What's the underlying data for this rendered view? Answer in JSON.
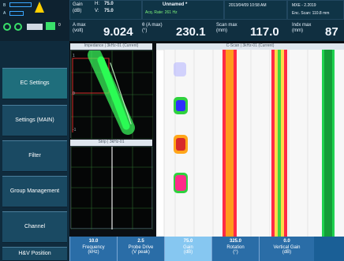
{
  "header": {
    "status": {
      "b_label": "B",
      "left_label": "A",
      "right_value": "0"
    },
    "gain": {
      "label": "Gain",
      "unit": "(dB)",
      "h_label": "H:",
      "h_value": "75.0",
      "v_label": "V:",
      "v_value": "75.0"
    },
    "file": {
      "name": "Unnamed *",
      "subtitle": "Acq. Rate: 261 Hz"
    },
    "datetime": "2013/04/09 10:58 AM",
    "device": {
      "label": "MXE - 2.2019",
      "scan_label": "Enc. Scan: 110.8 mm"
    },
    "readouts": [
      {
        "label": "A max (volt)",
        "value": "9.024"
      },
      {
        "label": "θ (A max) (°)",
        "value": "230.1"
      },
      {
        "label": "Scan max (mm)",
        "value": "117.0"
      },
      {
        "label": "Indx max (mm)",
        "value": "87"
      }
    ]
  },
  "sidebar": {
    "menu": [
      {
        "label": "EC Settings",
        "active": true
      },
      {
        "label": "Settings (MAIN)",
        "active": false
      },
      {
        "label": "Filter",
        "active": false
      },
      {
        "label": "Group Management",
        "active": false
      },
      {
        "label": "Channel",
        "active": false
      },
      {
        "label": "H&V Position",
        "active": false
      }
    ]
  },
  "panels": {
    "impedance_title": "Impedance | 3kHz-01 (Current)",
    "strip_title": "Strip | 3kHz-01",
    "cscan_title": "C-Scan | 3kHz-01 (Current)",
    "axis": {
      "left_top": "1",
      "left_mid": "0",
      "left_bot": "-1"
    }
  },
  "bottom_params": [
    {
      "value": "10.0",
      "label": "Frequency",
      "unit": "(kHz)",
      "active": false
    },
    {
      "value": "2.5",
      "label": "Probe Drive",
      "unit": "(V peak)",
      "active": false
    },
    {
      "value": "75.0",
      "label": "Gain",
      "unit": "(dB)",
      "active": true
    },
    {
      "value": "325.0",
      "label": "Rotation",
      "unit": "(°)",
      "active": false
    },
    {
      "value": "0.0",
      "label": "Vertical Gain",
      "unit": "(dB)",
      "active": false
    }
  ],
  "colors": {
    "accent": "#1f6e7c",
    "bottom_bar": "#2a6da7",
    "bottom_active": "#86c7f1",
    "header_bg": "#132a3a",
    "grid_green": "#23d14a",
    "red_marker": "#d72a2a"
  }
}
